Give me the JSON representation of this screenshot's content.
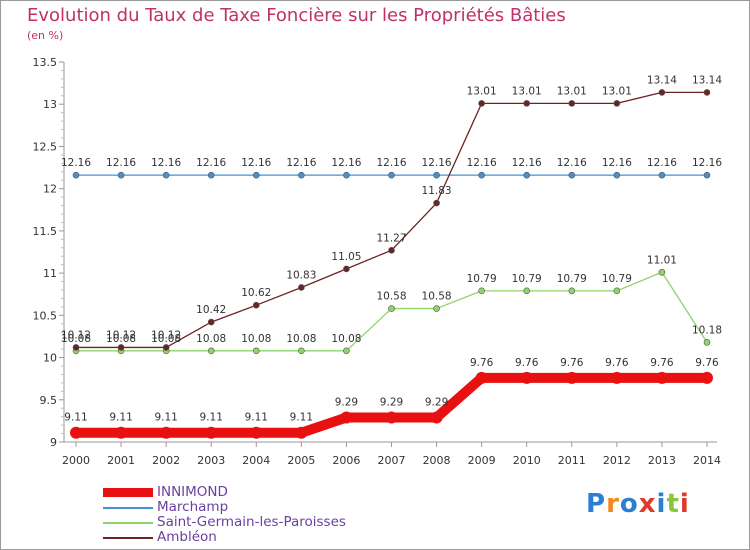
{
  "title": "Evolution du Taux de Taxe Foncière sur les Propriétés Bâties",
  "unit": "(en %)",
  "logo": "Proxiti",
  "chart_data": {
    "type": "line",
    "categories": [
      "2000",
      "2001",
      "2002",
      "2003",
      "2004",
      "2005",
      "2006",
      "2007",
      "2008",
      "2009",
      "2010",
      "2011",
      "2012",
      "2013",
      "2014"
    ],
    "ylim": [
      9,
      13.5
    ],
    "yticks": [
      "9",
      "9.5",
      "10",
      "10.5",
      "11",
      "11.5",
      "12",
      "12.5",
      "13",
      "13.5"
    ],
    "grid": false,
    "legend_position": "bottom-left",
    "series": [
      {
        "name": "INNIMOND",
        "color": "#e81010",
        "values": [
          9.11,
          9.11,
          9.11,
          9.11,
          9.11,
          9.11,
          9.29,
          9.29,
          9.29,
          9.76,
          9.76,
          9.76,
          9.76,
          9.76,
          9.76
        ],
        "labels": [
          "9.11",
          "9.11",
          "9.11",
          "9.11",
          "9.11",
          "9.11",
          "9.29",
          "9.29",
          "9.29",
          "9.76",
          "9.76",
          "9.76",
          "9.76",
          "9.76",
          "9.76"
        ]
      },
      {
        "name": "Marchamp",
        "color": "#4a8fcf",
        "values": [
          12.16,
          12.16,
          12.16,
          12.16,
          12.16,
          12.16,
          12.16,
          12.16,
          12.16,
          12.16,
          12.16,
          12.16,
          12.16,
          12.16,
          12.16
        ],
        "labels": [
          "12.16",
          "12.16",
          "12.16",
          "12.16",
          "12.16",
          "12.16",
          "12.16",
          "12.16",
          "12.16",
          "12.16",
          "12.16",
          "12.16",
          "12.16",
          "12.16",
          "12.16"
        ]
      },
      {
        "name": "Saint-Germain-les-Paroisses",
        "color": "#8fd46a",
        "values": [
          10.08,
          10.08,
          10.08,
          10.08,
          10.08,
          10.08,
          10.08,
          10.58,
          10.58,
          10.79,
          10.79,
          10.79,
          10.79,
          11.01,
          10.18
        ],
        "labels": [
          "10.08",
          "10.08",
          "10.08",
          "10.08",
          "10.08",
          "10.08",
          "10.08",
          "10.58",
          "10.58",
          "10.79",
          "10.79",
          "10.79",
          "10.79",
          "11.01",
          "10.18"
        ]
      },
      {
        "name": "Ambléon",
        "color": "#6b2424",
        "values": [
          10.12,
          10.12,
          10.12,
          10.42,
          10.62,
          10.83,
          11.05,
          11.27,
          11.83,
          13.01,
          13.01,
          13.01,
          13.01,
          13.14,
          13.14
        ],
        "labels": [
          "10.12",
          "10.12",
          "10.12",
          "10.42",
          "10.62",
          "10.83",
          "11.05",
          "11.27",
          "11.83",
          "13.01",
          "13.01",
          "13.01",
          "13.01",
          "13.14",
          "13.14"
        ]
      }
    ]
  }
}
